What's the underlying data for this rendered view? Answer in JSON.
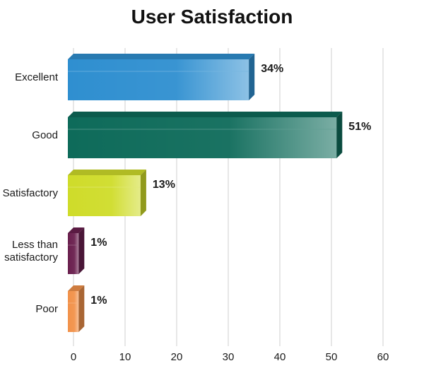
{
  "chart_data": {
    "type": "bar",
    "orientation": "horizontal",
    "title": "User Satisfaction",
    "categories": [
      "Excellent",
      "Good",
      "Satisfactory",
      "Less than satisfactory",
      "Poor"
    ],
    "category_lines": [
      [
        "Excellent"
      ],
      [
        "Good"
      ],
      [
        "Satisfactory"
      ],
      [
        "Less than",
        "satisfactory"
      ],
      [
        "Poor"
      ]
    ],
    "values": [
      34,
      51,
      13,
      1,
      1
    ],
    "value_labels": [
      "34%",
      "51%",
      "13%",
      "1%",
      "1%"
    ],
    "colors": [
      "#2f8fd0",
      "#0e6b5a",
      "#cfdc2a",
      "#6a1f4e",
      "#f2924a"
    ],
    "xlim": [
      0,
      60
    ],
    "xticks": [
      0,
      10,
      20,
      30,
      40,
      50,
      60
    ],
    "grid": true,
    "legend": "none"
  }
}
